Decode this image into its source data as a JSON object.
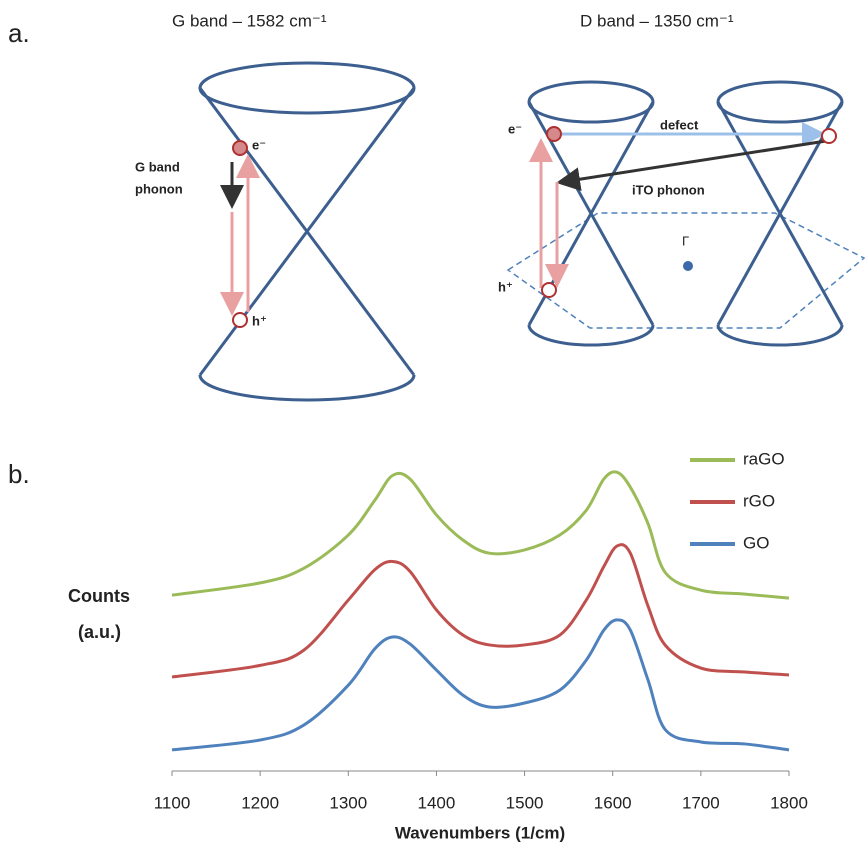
{
  "panel_a": {
    "label": "a.",
    "g_band": {
      "title": "G band – 1582 cm⁻¹",
      "electron": "e⁻",
      "phonon_label": [
        "G band",
        "phonon"
      ],
      "hole": "h⁺"
    },
    "d_band": {
      "title": "D band – 1350 cm⁻¹",
      "electron": "e⁻",
      "defect": "defect",
      "phonon": "iTO phonon",
      "hole": "h⁺",
      "gamma": "Γ"
    }
  },
  "chart_data": {
    "type": "line",
    "label": "b.",
    "x_label": "Wavenumbers (1/cm)",
    "y_label": [
      "Counts",
      "(a.u.)"
    ],
    "x": [
      1100,
      1200,
      1250,
      1300,
      1330,
      1350,
      1370,
      1400,
      1430,
      1460,
      1500,
      1540,
      1570,
      1590,
      1605,
      1620,
      1640,
      1660,
      1700,
      1750,
      1800
    ],
    "series": [
      {
        "name": "raGO",
        "color": "#9bbb59",
        "values": [
          53.3,
          57,
          61.5,
          71.5,
          82,
          89.5,
          88.5,
          77.6,
          70,
          66,
          67,
          71.5,
          79,
          88.5,
          90.5,
          86,
          75,
          60,
          54.8,
          53.6,
          52.4
        ]
      },
      {
        "name": "rGO",
        "color": "#c0504d",
        "values": [
          28.5,
          32,
          36.7,
          51.8,
          61,
          63.5,
          60.5,
          48.8,
          41.2,
          38.2,
          38.2,
          41.2,
          51.8,
          62,
          68.2,
          66,
          50,
          38,
          31.2,
          30,
          29.1
        ]
      },
      {
        "name": "GO",
        "color": "#4f81bd",
        "values": [
          6.4,
          9.4,
          14,
          26,
          37,
          40.6,
          38.5,
          30.6,
          23,
          19.4,
          20.6,
          24.5,
          33.6,
          42.7,
          45.8,
          42.7,
          27.6,
          12.4,
          8.8,
          8.2,
          6.4
        ]
      }
    ],
    "xlim": [
      1100,
      1800
    ],
    "xticks": [
      1100,
      1200,
      1300,
      1400,
      1500,
      1600,
      1700,
      1800
    ],
    "ylim": [
      0,
      100
    ]
  }
}
